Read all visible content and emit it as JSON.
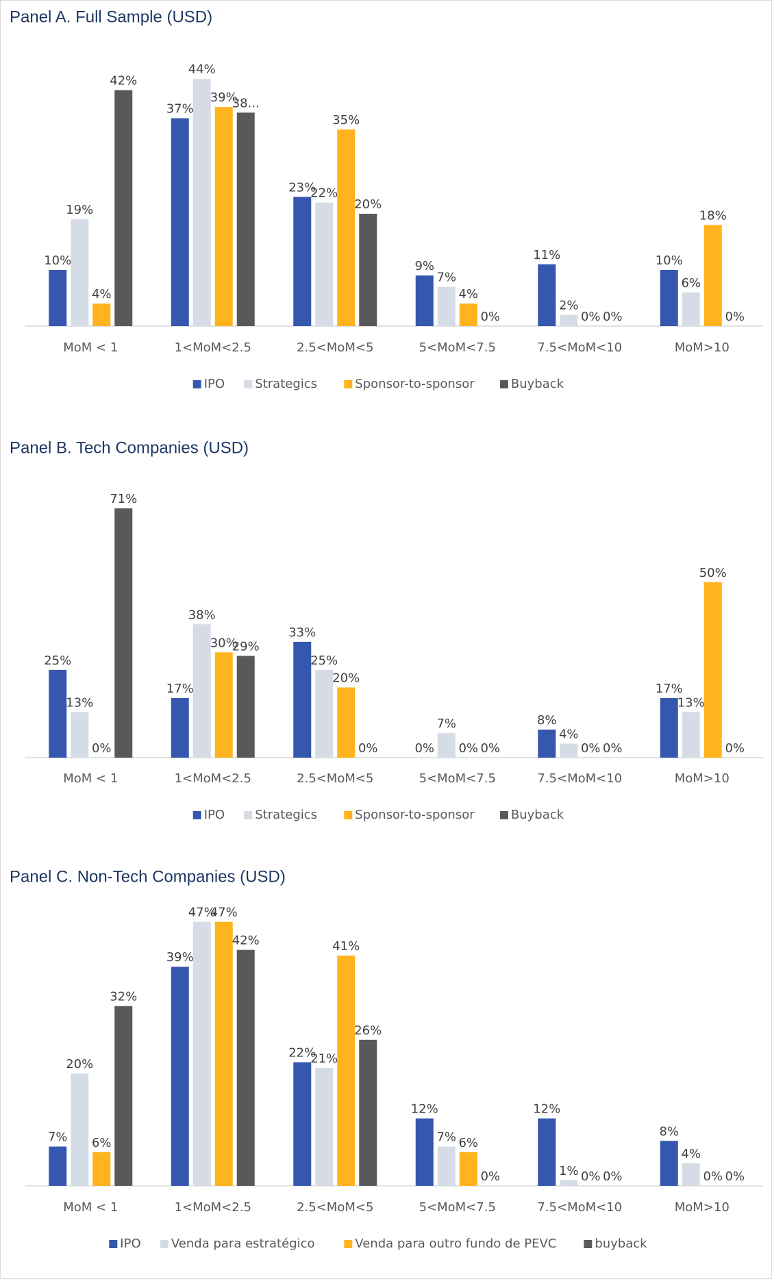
{
  "chart_data": [
    {
      "type": "bar",
      "title": "Panel A. Full Sample (USD)",
      "categories": [
        "MoM < 1",
        "1<MoM<2.5",
        "2.5<MoM<5",
        "5<MoM<7.5",
        "7.5<MoM<10",
        "MoM>10"
      ],
      "ylim": [
        0,
        50
      ],
      "series": [
        {
          "name": "IPO",
          "color": "#3557ae",
          "values": [
            10,
            37,
            23,
            9,
            11,
            10
          ],
          "value_labels": [
            "10%",
            "37%",
            "23%",
            "9%",
            "11%",
            "10%"
          ]
        },
        {
          "name": "Strategics",
          "color": "#d6dce5",
          "values": [
            19,
            44,
            22,
            7,
            2,
            6
          ],
          "value_labels": [
            "19%",
            "44%",
            "22%",
            "7%",
            "2%",
            "6%"
          ]
        },
        {
          "name": "Sponsor-to-sponsor",
          "color": "#ffb41e",
          "values": [
            4,
            39,
            35,
            4,
            0,
            18
          ],
          "value_labels": [
            "4%",
            "39%",
            "35%",
            "4%",
            "0%",
            "18%"
          ]
        },
        {
          "name": "Buyback",
          "color": "#595959",
          "values": [
            42,
            38,
            20,
            0,
            0,
            0
          ],
          "value_labels": [
            "42%",
            "38...",
            "20%",
            "0%",
            "0%",
            "0%"
          ]
        }
      ]
    },
    {
      "type": "bar",
      "title": "Panel B. Tech Companies (USD)",
      "categories": [
        "MoM < 1",
        "1<MoM<2.5",
        "2.5<MoM<5",
        "5<MoM<7.5",
        "7.5<MoM<10",
        "MoM>10"
      ],
      "ylim": [
        0,
        80
      ],
      "series": [
        {
          "name": "IPO",
          "color": "#3557ae",
          "values": [
            25,
            17,
            33,
            0,
            8,
            17
          ],
          "value_labels": [
            "25%",
            "17%",
            "33%",
            "0%",
            "8%",
            "17%"
          ]
        },
        {
          "name": "Strategics",
          "color": "#d6dce5",
          "values": [
            13,
            38,
            25,
            7,
            4,
            13
          ],
          "value_labels": [
            "13%",
            "38%",
            "25%",
            "7%",
            "4%",
            "13%"
          ]
        },
        {
          "name": "Sponsor-to-sponsor",
          "color": "#ffb41e",
          "values": [
            0,
            30,
            20,
            0,
            0,
            50
          ],
          "value_labels": [
            "0%",
            "30%",
            "20%",
            "0%",
            "0%",
            "50%"
          ]
        },
        {
          "name": "Buyback",
          "color": "#595959",
          "values": [
            71,
            29,
            0,
            0,
            0,
            0
          ],
          "value_labels": [
            "71%",
            "29%",
            "0%",
            "0%",
            "0%",
            "0%"
          ]
        }
      ]
    },
    {
      "type": "bar",
      "title": "Panel C. Non-Tech Companies (USD)",
      "categories": [
        "MoM < 1",
        "1<MoM<2.5",
        "2.5<MoM<5",
        "5<MoM<7.5",
        "7.5<MoM<10",
        "MoM>10"
      ],
      "ylim": [
        0,
        50
      ],
      "series": [
        {
          "name": "IPO",
          "color": "#3557ae",
          "values": [
            7,
            39,
            22,
            12,
            12,
            8
          ],
          "value_labels": [
            "7%",
            "39%",
            "22%",
            "12%",
            "12%",
            "8%"
          ]
        },
        {
          "name": "Venda para estratégico",
          "color": "#d6dce5",
          "values": [
            20,
            47,
            21,
            7,
            1,
            4
          ],
          "value_labels": [
            "20%",
            "47%",
            "21%",
            "7%",
            "1%",
            "4%"
          ]
        },
        {
          "name": "Venda para outro fundo de PEVC",
          "color": "#ffb41e",
          "values": [
            6,
            47,
            41,
            6,
            0,
            0
          ],
          "value_labels": [
            "6%",
            "47%",
            "41%",
            "6%",
            "0%",
            "0%"
          ]
        },
        {
          "name": "buyback",
          "color": "#595959",
          "values": [
            32,
            42,
            26,
            0,
            0,
            0
          ],
          "value_labels": [
            "32%",
            "42%",
            "26%",
            "0%",
            "0%",
            "0%"
          ]
        }
      ]
    }
  ]
}
